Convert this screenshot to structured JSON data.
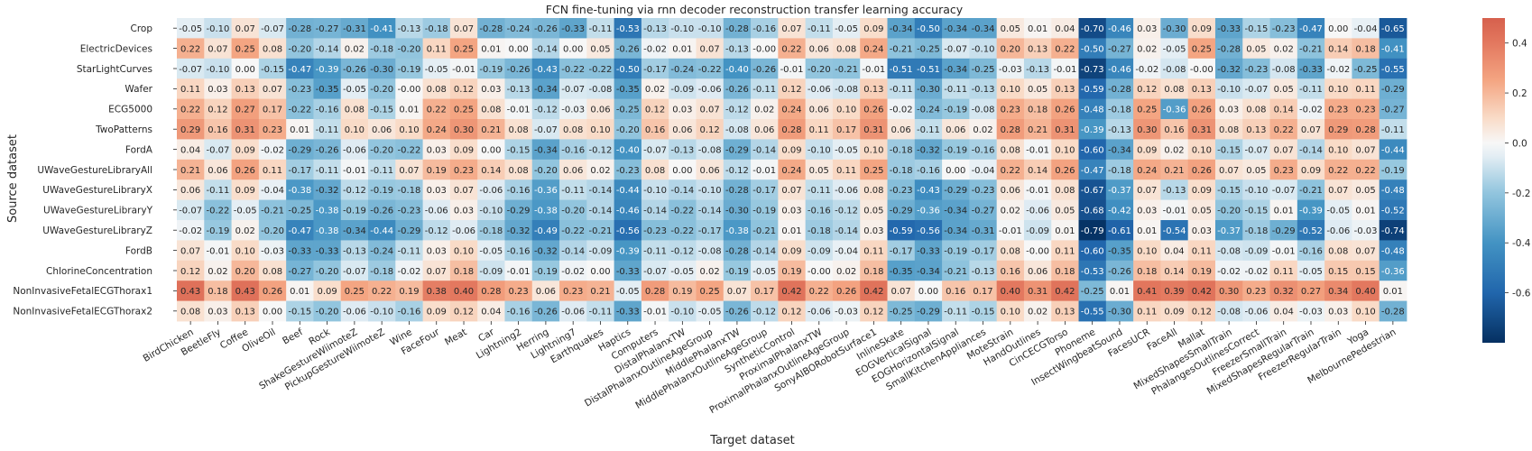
{
  "chart_data": {
    "type": "heatmap",
    "title": "FCN fine-tuning via rnn decoder reconstruction transfer learning accuracy",
    "xlabel": "Target dataset",
    "ylabel": "Source dataset",
    "rows": [
      "Crop",
      "ElectricDevices",
      "StarLightCurves",
      "Wafer",
      "ECG5000",
      "TwoPatterns",
      "FordA",
      "UWaveGestureLibraryAll",
      "UWaveGestureLibraryX",
      "UWaveGestureLibraryY",
      "UWaveGestureLibraryZ",
      "FordB",
      "ChlorineConcentration",
      "NonInvasiveFetalECGThorax1",
      "NonInvasiveFetalECGThorax2"
    ],
    "columns": [
      "BirdChicken",
      "BeetleFly",
      "Coffee",
      "OliveOil",
      "Beef",
      "Rock",
      "ShakeGestureWiimoteZ",
      "PickupGestureWiimoteZ",
      "Wine",
      "FaceFour",
      "Meat",
      "Car",
      "Lightning2",
      "Herring",
      "Lightning7",
      "Earthquakes",
      "Haptics",
      "Computers",
      "DistalPhalanxTW",
      "DistalPhalanxOutlineAgeGroup",
      "MiddlePhalanxTW",
      "MiddlePhalanxOutlineAgeGroup",
      "SyntheticControl",
      "ProximalPhalanxTW",
      "ProximalPhalanxOutlineAgeGroup",
      "SonyAIBORobotSurface1",
      "InlineSkate",
      "EOGVerticalSignal",
      "EOGHorizontalSignal",
      "SmallKitchenAppliances",
      "MoteStrain",
      "HandOutlines",
      "CinCECGTorso",
      "Phoneme",
      "InsectWingbeatSound",
      "FacesUCR",
      "FaceAll",
      "Mallat",
      "MixedShapesSmallTrain",
      "PhalangesOutlinesCorrect",
      "FreezerSmallTrain",
      "MixedShapesRegularTrain",
      "FreezerRegularTrain",
      "Yoga",
      "MelbournePedestrian"
    ],
    "values": [
      [
        "-0.05",
        "-0.10",
        "0.07",
        "-0.07",
        "-0.28",
        "-0.27",
        "-0.31",
        "-0.41",
        "-0.13",
        "-0.18",
        "0.07",
        "-0.28",
        "-0.24",
        "-0.26",
        "-0.33",
        "-0.11",
        "-0.53",
        "-0.13",
        "-0.10",
        "-0.10",
        "-0.28",
        "-0.16",
        "0.07",
        "-0.11",
        "-0.05",
        "0.09",
        "-0.34",
        "-0.50",
        "-0.34",
        "-0.34",
        "0.05",
        "0.01",
        "0.04",
        "-0.70",
        "-0.46",
        "0.03",
        "-0.30",
        "0.09",
        "-0.33",
        "-0.15",
        "-0.23",
        "-0.47",
        "0.00",
        "-0.04",
        "-0.65"
      ],
      [
        "0.22",
        "0.07",
        "0.25",
        "0.08",
        "-0.20",
        "-0.14",
        "0.02",
        "-0.18",
        "-0.20",
        "0.11",
        "0.25",
        "0.01",
        "0.00",
        "-0.14",
        "0.00",
        "0.05",
        "-0.26",
        "-0.02",
        "0.01",
        "0.07",
        "-0.13",
        "-0.00",
        "0.22",
        "0.06",
        "0.08",
        "0.24",
        "-0.21",
        "-0.25",
        "-0.07",
        "-0.10",
        "0.20",
        "0.13",
        "0.22",
        "-0.50",
        "-0.27",
        "0.02",
        "-0.05",
        "0.25",
        "-0.28",
        "0.05",
        "0.02",
        "-0.21",
        "0.14",
        "0.18",
        "-0.41"
      ],
      [
        "-0.07",
        "-0.10",
        "0.00",
        "-0.15",
        "-0.47",
        "-0.39",
        "-0.26",
        "-0.30",
        "-0.19",
        "-0.05",
        "-0.01",
        "-0.19",
        "-0.26",
        "-0.43",
        "-0.22",
        "-0.22",
        "-0.50",
        "-0.17",
        "-0.24",
        "-0.22",
        "-0.40",
        "-0.26",
        "-0.01",
        "-0.20",
        "-0.21",
        "-0.01",
        "-0.51",
        "-0.51",
        "-0.34",
        "-0.25",
        "-0.03",
        "-0.13",
        "-0.01",
        "-0.73",
        "-0.46",
        "-0.02",
        "-0.08",
        "-0.00",
        "-0.32",
        "-0.23",
        "-0.08",
        "-0.33",
        "-0.02",
        "-0.25",
        "-0.55"
      ],
      [
        "0.11",
        "0.03",
        "0.13",
        "0.07",
        "-0.23",
        "-0.35",
        "-0.05",
        "-0.20",
        "-0.00",
        "0.08",
        "0.12",
        "0.03",
        "-0.13",
        "-0.34",
        "-0.07",
        "-0.08",
        "-0.35",
        "0.02",
        "-0.09",
        "-0.06",
        "-0.26",
        "-0.11",
        "0.12",
        "-0.06",
        "-0.08",
        "0.13",
        "-0.11",
        "-0.30",
        "-0.11",
        "-0.13",
        "0.10",
        "0.05",
        "0.13",
        "-0.59",
        "-0.28",
        "0.12",
        "0.08",
        "0.13",
        "-0.10",
        "-0.07",
        "0.05",
        "-0.11",
        "0.10",
        "0.11",
        "-0.29"
      ],
      [
        "0.22",
        "0.12",
        "0.27",
        "0.17",
        "-0.22",
        "-0.16",
        "0.08",
        "-0.15",
        "0.01",
        "0.22",
        "0.25",
        "0.08",
        "-0.01",
        "-0.12",
        "-0.03",
        "0.06",
        "-0.25",
        "0.12",
        "0.03",
        "0.07",
        "-0.12",
        "0.02",
        "0.24",
        "0.06",
        "0.10",
        "0.26",
        "-0.02",
        "-0.24",
        "-0.19",
        "-0.08",
        "0.23",
        "0.18",
        "0.26",
        "-0.48",
        "-0.18",
        "0.25",
        "-0.36",
        "0.26",
        "0.03",
        "0.08",
        "0.14",
        "-0.02",
        "0.23",
        "0.23",
        "-0.27"
      ],
      [
        "0.29",
        "0.16",
        "0.31",
        "0.23",
        "0.01",
        "-0.11",
        "0.10",
        "0.06",
        "0.10",
        "0.24",
        "0.30",
        "0.21",
        "0.08",
        "-0.07",
        "0.08",
        "0.10",
        "-0.20",
        "0.16",
        "0.06",
        "0.12",
        "-0.08",
        "0.06",
        "0.28",
        "0.11",
        "0.17",
        "0.31",
        "0.06",
        "-0.11",
        "0.06",
        "0.02",
        "0.28",
        "0.21",
        "0.31",
        "-0.39",
        "-0.13",
        "0.30",
        "0.16",
        "0.31",
        "0.08",
        "0.13",
        "0.22",
        "0.07",
        "0.29",
        "0.28",
        "-0.11"
      ],
      [
        "0.04",
        "-0.07",
        "0.09",
        "-0.02",
        "-0.29",
        "-0.26",
        "-0.06",
        "-0.20",
        "-0.22",
        "0.03",
        "0.09",
        "0.00",
        "-0.15",
        "-0.34",
        "-0.16",
        "-0.12",
        "-0.40",
        "-0.07",
        "-0.13",
        "-0.08",
        "-0.29",
        "-0.14",
        "0.09",
        "-0.10",
        "-0.05",
        "0.10",
        "-0.18",
        "-0.32",
        "-0.19",
        "-0.16",
        "0.08",
        "-0.01",
        "0.10",
        "-0.60",
        "-0.34",
        "0.09",
        "0.02",
        "0.10",
        "-0.15",
        "-0.07",
        "0.07",
        "-0.14",
        "0.10",
        "0.07",
        "-0.44"
      ],
      [
        "0.21",
        "0.06",
        "0.26",
        "0.11",
        "-0.17",
        "-0.11",
        "-0.01",
        "-0.11",
        "0.07",
        "0.19",
        "0.23",
        "0.14",
        "0.08",
        "-0.20",
        "0.06",
        "0.02",
        "-0.23",
        "0.08",
        "0.00",
        "0.06",
        "-0.12",
        "-0.01",
        "0.24",
        "0.05",
        "0.11",
        "0.25",
        "-0.18",
        "-0.16",
        "0.00",
        "-0.04",
        "0.22",
        "0.14",
        "0.26",
        "-0.47",
        "-0.18",
        "0.24",
        "0.21",
        "0.26",
        "0.07",
        "0.05",
        "0.23",
        "0.09",
        "0.22",
        "0.22",
        "-0.19"
      ],
      [
        "0.06",
        "-0.11",
        "0.09",
        "-0.04",
        "-0.38",
        "-0.32",
        "-0.12",
        "-0.19",
        "-0.18",
        "0.03",
        "0.07",
        "-0.06",
        "-0.16",
        "-0.36",
        "-0.11",
        "-0.14",
        "-0.44",
        "-0.10",
        "-0.14",
        "-0.10",
        "-0.28",
        "-0.17",
        "0.07",
        "-0.11",
        "-0.06",
        "0.08",
        "-0.23",
        "-0.43",
        "-0.29",
        "-0.23",
        "0.06",
        "-0.01",
        "0.08",
        "-0.67",
        "-0.37",
        "0.07",
        "-0.13",
        "0.09",
        "-0.15",
        "-0.10",
        "-0.07",
        "-0.21",
        "0.07",
        "0.05",
        "-0.48"
      ],
      [
        "-0.07",
        "-0.22",
        "-0.05",
        "-0.21",
        "-0.25",
        "-0.38",
        "-0.19",
        "-0.26",
        "-0.23",
        "-0.06",
        "0.03",
        "-0.10",
        "-0.29",
        "-0.38",
        "-0.20",
        "-0.14",
        "-0.46",
        "-0.14",
        "-0.22",
        "-0.14",
        "-0.30",
        "-0.19",
        "0.03",
        "-0.16",
        "-0.12",
        "0.05",
        "-0.29",
        "-0.36",
        "-0.34",
        "-0.27",
        "0.02",
        "-0.06",
        "0.05",
        "-0.68",
        "-0.42",
        "0.03",
        "-0.01",
        "0.05",
        "-0.20",
        "-0.15",
        "0.01",
        "-0.39",
        "-0.05",
        "0.01",
        "-0.52"
      ],
      [
        "-0.02",
        "-0.19",
        "0.02",
        "-0.20",
        "-0.47",
        "-0.38",
        "-0.34",
        "-0.44",
        "-0.29",
        "-0.12",
        "-0.06",
        "-0.18",
        "-0.32",
        "-0.49",
        "-0.22",
        "-0.21",
        "-0.56",
        "-0.23",
        "-0.22",
        "-0.17",
        "-0.38",
        "-0.21",
        "0.01",
        "-0.18",
        "-0.14",
        "0.03",
        "-0.59",
        "-0.56",
        "-0.34",
        "-0.31",
        "-0.01",
        "-0.09",
        "0.01",
        "-0.79",
        "-0.61",
        "0.01",
        "-0.54",
        "0.03",
        "-0.37",
        "-0.18",
        "-0.29",
        "-0.52",
        "-0.06",
        "-0.03",
        "-0.74"
      ],
      [
        "0.07",
        "-0.01",
        "0.10",
        "-0.03",
        "-0.33",
        "-0.33",
        "-0.13",
        "-0.24",
        "-0.11",
        "0.03",
        "0.10",
        "-0.05",
        "-0.16",
        "-0.32",
        "-0.14",
        "-0.09",
        "-0.39",
        "-0.11",
        "-0.12",
        "-0.08",
        "-0.28",
        "-0.14",
        "0.09",
        "-0.09",
        "-0.04",
        "0.11",
        "-0.17",
        "-0.33",
        "-0.19",
        "-0.17",
        "0.08",
        "-0.00",
        "0.11",
        "-0.60",
        "-0.35",
        "0.10",
        "0.04",
        "0.11",
        "-0.08",
        "-0.09",
        "-0.01",
        "-0.16",
        "0.08",
        "0.07",
        "-0.48"
      ],
      [
        "0.12",
        "0.02",
        "0.20",
        "0.08",
        "-0.27",
        "-0.20",
        "-0.07",
        "-0.18",
        "-0.02",
        "0.07",
        "0.18",
        "-0.09",
        "-0.01",
        "-0.19",
        "-0.02",
        "0.00",
        "-0.33",
        "-0.07",
        "-0.05",
        "0.02",
        "-0.19",
        "-0.05",
        "0.19",
        "-0.00",
        "0.02",
        "0.18",
        "-0.35",
        "-0.34",
        "-0.21",
        "-0.13",
        "0.16",
        "0.06",
        "0.18",
        "-0.53",
        "-0.26",
        "0.18",
        "0.14",
        "0.19",
        "-0.02",
        "-0.02",
        "0.11",
        "-0.05",
        "0.15",
        "0.15",
        "-0.36"
      ],
      [
        "0.43",
        "0.18",
        "0.43",
        "0.26",
        "0.01",
        "0.09",
        "0.25",
        "0.22",
        "0.19",
        "0.38",
        "0.40",
        "0.28",
        "0.23",
        "0.06",
        "0.23",
        "0.21",
        "-0.05",
        "0.28",
        "0.19",
        "0.25",
        "0.07",
        "0.17",
        "0.42",
        "0.22",
        "0.26",
        "0.42",
        "0.07",
        "0.00",
        "0.16",
        "0.17",
        "0.40",
        "0.31",
        "0.42",
        "-0.25",
        "0.01",
        "0.41",
        "0.39",
        "0.42",
        "0.30",
        "0.23",
        "0.32",
        "0.27",
        "0.34",
        "0.40",
        "0.01"
      ],
      [
        "0.08",
        "0.03",
        "0.13",
        "0.00",
        "-0.15",
        "-0.20",
        "-0.06",
        "-0.10",
        "-0.16",
        "0.09",
        "0.12",
        "0.04",
        "-0.16",
        "-0.26",
        "-0.06",
        "-0.11",
        "-0.33",
        "-0.01",
        "-0.10",
        "-0.05",
        "-0.26",
        "-0.12",
        "0.12",
        "-0.06",
        "-0.03",
        "0.12",
        "-0.25",
        "-0.29",
        "-0.11",
        "-0.15",
        "0.10",
        "0.02",
        "0.13",
        "-0.55",
        "-0.30",
        "0.11",
        "0.09",
        "0.12",
        "-0.08",
        "-0.06",
        "0.04",
        "-0.03",
        "0.03",
        "0.10",
        "-0.28"
      ]
    ],
    "colorbar": {
      "vmin": -0.8,
      "vmax": 0.5,
      "ticks": [
        "-0.6",
        "-0.4",
        "-0.2",
        "0.0",
        "0.2",
        "0.4"
      ],
      "colormap": "RdBu_r",
      "colors": {
        "negative_end": "#08306b",
        "negative_mid": "#4393c3",
        "center": "#f7f7f7",
        "positive_mid": "#f4a582",
        "positive_end": "#d6604d"
      }
    },
    "grid": false,
    "legend": "colorbar-right"
  }
}
